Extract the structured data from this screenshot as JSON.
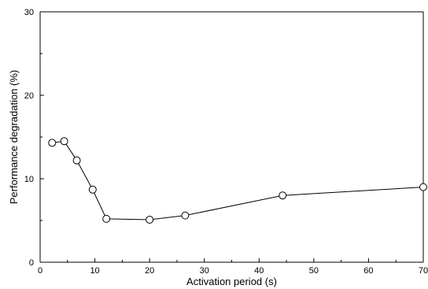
{
  "chart_data": {
    "type": "line",
    "xlabel": "Activation period (s)",
    "ylabel": "Performance degradation (%)",
    "xlim": [
      0,
      70
    ],
    "ylim": [
      0,
      30
    ],
    "x_ticks": [
      0,
      10,
      20,
      30,
      40,
      50,
      60,
      70
    ],
    "y_ticks": [
      0,
      10,
      20,
      30
    ],
    "grid": false,
    "marker": "open-circle",
    "series": [
      {
        "x": [
          2.2,
          4.4,
          6.7,
          9.6,
          12.1,
          20.0,
          26.5,
          44.3,
          70.0
        ],
        "y": [
          14.3,
          14.5,
          12.2,
          8.7,
          5.2,
          5.1,
          5.6,
          8.0,
          9.0
        ]
      }
    ]
  }
}
